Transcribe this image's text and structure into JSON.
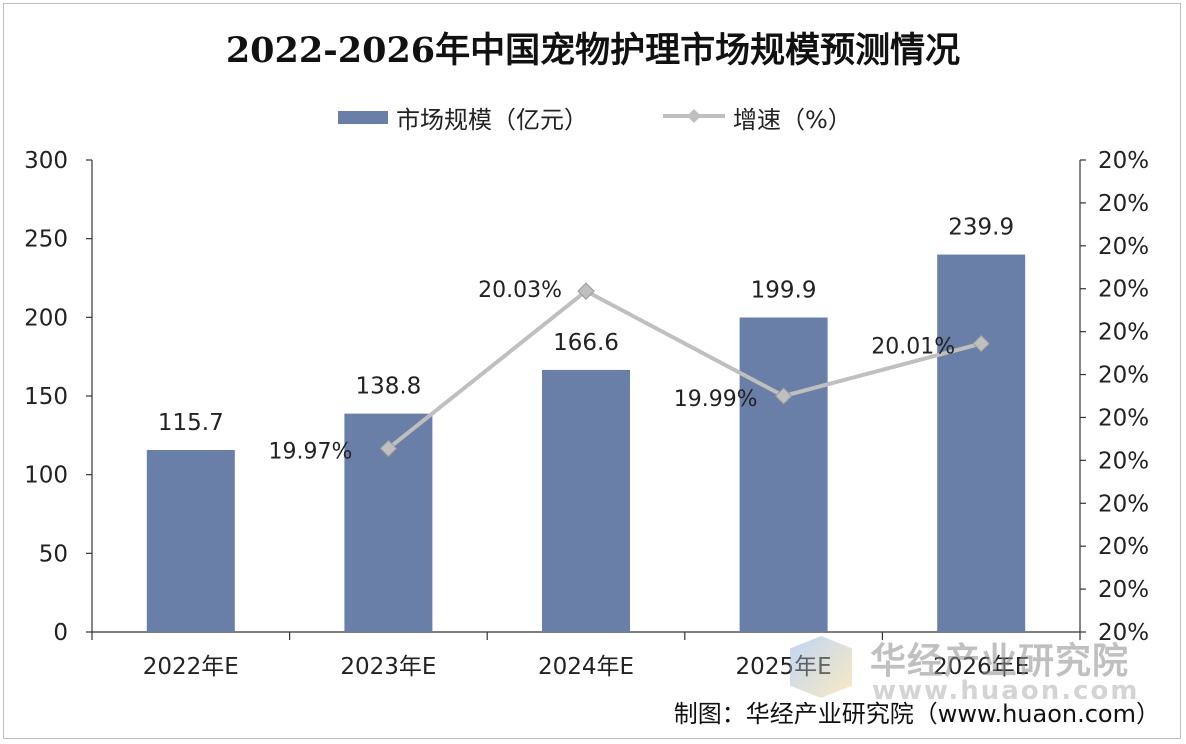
{
  "chart_data": {
    "type": "bar",
    "title": "2022-2026年中国宠物护理市场规模预测情况",
    "categories": [
      "2022年E",
      "2023年E",
      "2024年E",
      "2025年E",
      "2026年E"
    ],
    "series": [
      {
        "name": "市场规模（亿元）",
        "type": "bar",
        "axis": "left",
        "color": "#6a7fa8",
        "values": [
          115.7,
          138.8,
          166.6,
          199.9,
          239.9
        ],
        "labels": [
          "115.7",
          "138.8",
          "166.6",
          "199.9",
          "239.9"
        ]
      },
      {
        "name": "增速（%）",
        "type": "line",
        "axis": "right",
        "color": "#bfbfbf",
        "values": [
          null,
          19.97,
          20.03,
          19.99,
          20.01
        ],
        "labels": [
          "",
          "19.97%",
          "20.03%",
          "19.99%",
          "20.01%"
        ]
      }
    ],
    "y_left": {
      "min": 0,
      "max": 300,
      "ticks": [
        "0",
        "50",
        "100",
        "150",
        "200",
        "250",
        "300"
      ]
    },
    "y_right": {
      "min": 19.9,
      "max": 20.08,
      "ticks": [
        "20%",
        "20%",
        "20%",
        "20%",
        "20%",
        "20%",
        "20%",
        "20%",
        "20%",
        "20%",
        "20%",
        "20%"
      ]
    },
    "legend_position": "top-center",
    "grid": false
  },
  "legend": {
    "bar_label": "市场规模（亿元）",
    "line_label": "增速（%）"
  },
  "credit": "制图：华经产业研究院（www.huaon.com）",
  "watermark": {
    "name": "华经产业研究院",
    "url": "www.huaon.com"
  }
}
